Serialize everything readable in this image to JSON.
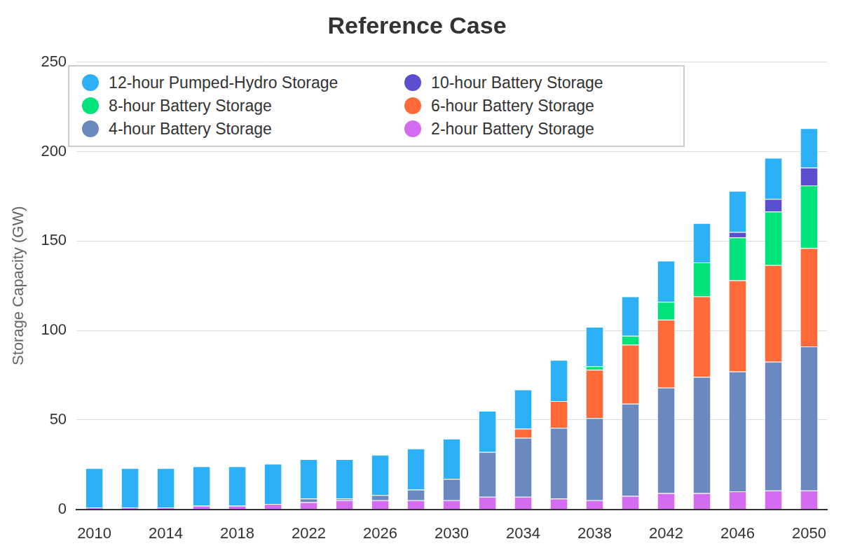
{
  "chart_data": {
    "type": "bar",
    "title": "Reference Case",
    "y_label": "Storage Capacity (GW)",
    "categories": [
      "2010",
      null,
      "2014",
      null,
      "2018",
      null,
      "2022",
      null,
      "2026",
      null,
      "2030",
      null,
      "2034",
      null,
      "2038",
      null,
      "2042",
      null,
      "2046",
      null,
      "2050"
    ],
    "series": [
      {
        "name": "12-hour Pumped-Hydro Storage",
        "color": "#2cb0f8",
        "values": [
          22,
          22,
          22,
          22,
          22,
          22.5,
          22,
          22,
          22.5,
          23,
          22.5,
          23,
          22,
          23,
          22,
          22,
          23,
          22,
          23,
          23,
          22
        ]
      },
      {
        "name": "10-hour Battery Storage",
        "color": "#5b4fcf",
        "values": [
          0,
          0,
          0,
          0,
          0,
          0,
          0,
          0,
          0,
          0,
          0,
          0,
          0,
          0,
          0,
          0,
          0,
          0,
          3,
          7,
          10
        ]
      },
      {
        "name": "8-hour Battery Storage",
        "color": "#00e27a",
        "values": [
          0,
          0,
          0,
          0,
          0,
          0,
          0,
          0,
          0,
          0,
          0,
          0,
          0,
          0,
          2,
          5,
          10,
          19,
          24,
          30,
          35
        ]
      },
      {
        "name": "6-hour Battery Storage",
        "color": "#ff6a38",
        "values": [
          0,
          0,
          0,
          0,
          0,
          0,
          0,
          0,
          0,
          0,
          0,
          0,
          5,
          15,
          27,
          33,
          38,
          45,
          51,
          54,
          55
        ]
      },
      {
        "name": "4-hour Battery Storage",
        "color": "#6a89be",
        "values": [
          0,
          0,
          0,
          0,
          0,
          0,
          2,
          1,
          3,
          6,
          12,
          25,
          33,
          39.5,
          46,
          51.5,
          59,
          65,
          67,
          72,
          80.5
        ]
      },
      {
        "name": "2-hour Battery Storage",
        "color": "#d46cf2",
        "values": [
          1,
          1,
          1,
          2,
          2,
          3,
          4,
          5,
          5,
          5,
          5,
          7,
          7,
          6,
          5,
          7.5,
          9,
          9,
          10,
          10.5,
          10.5
        ]
      }
    ],
    "stacked": true,
    "ylim": [
      0,
      250
    ],
    "yticks": [
      0,
      50,
      100,
      150,
      200,
      250
    ],
    "grid": true,
    "legend": "upper left"
  }
}
